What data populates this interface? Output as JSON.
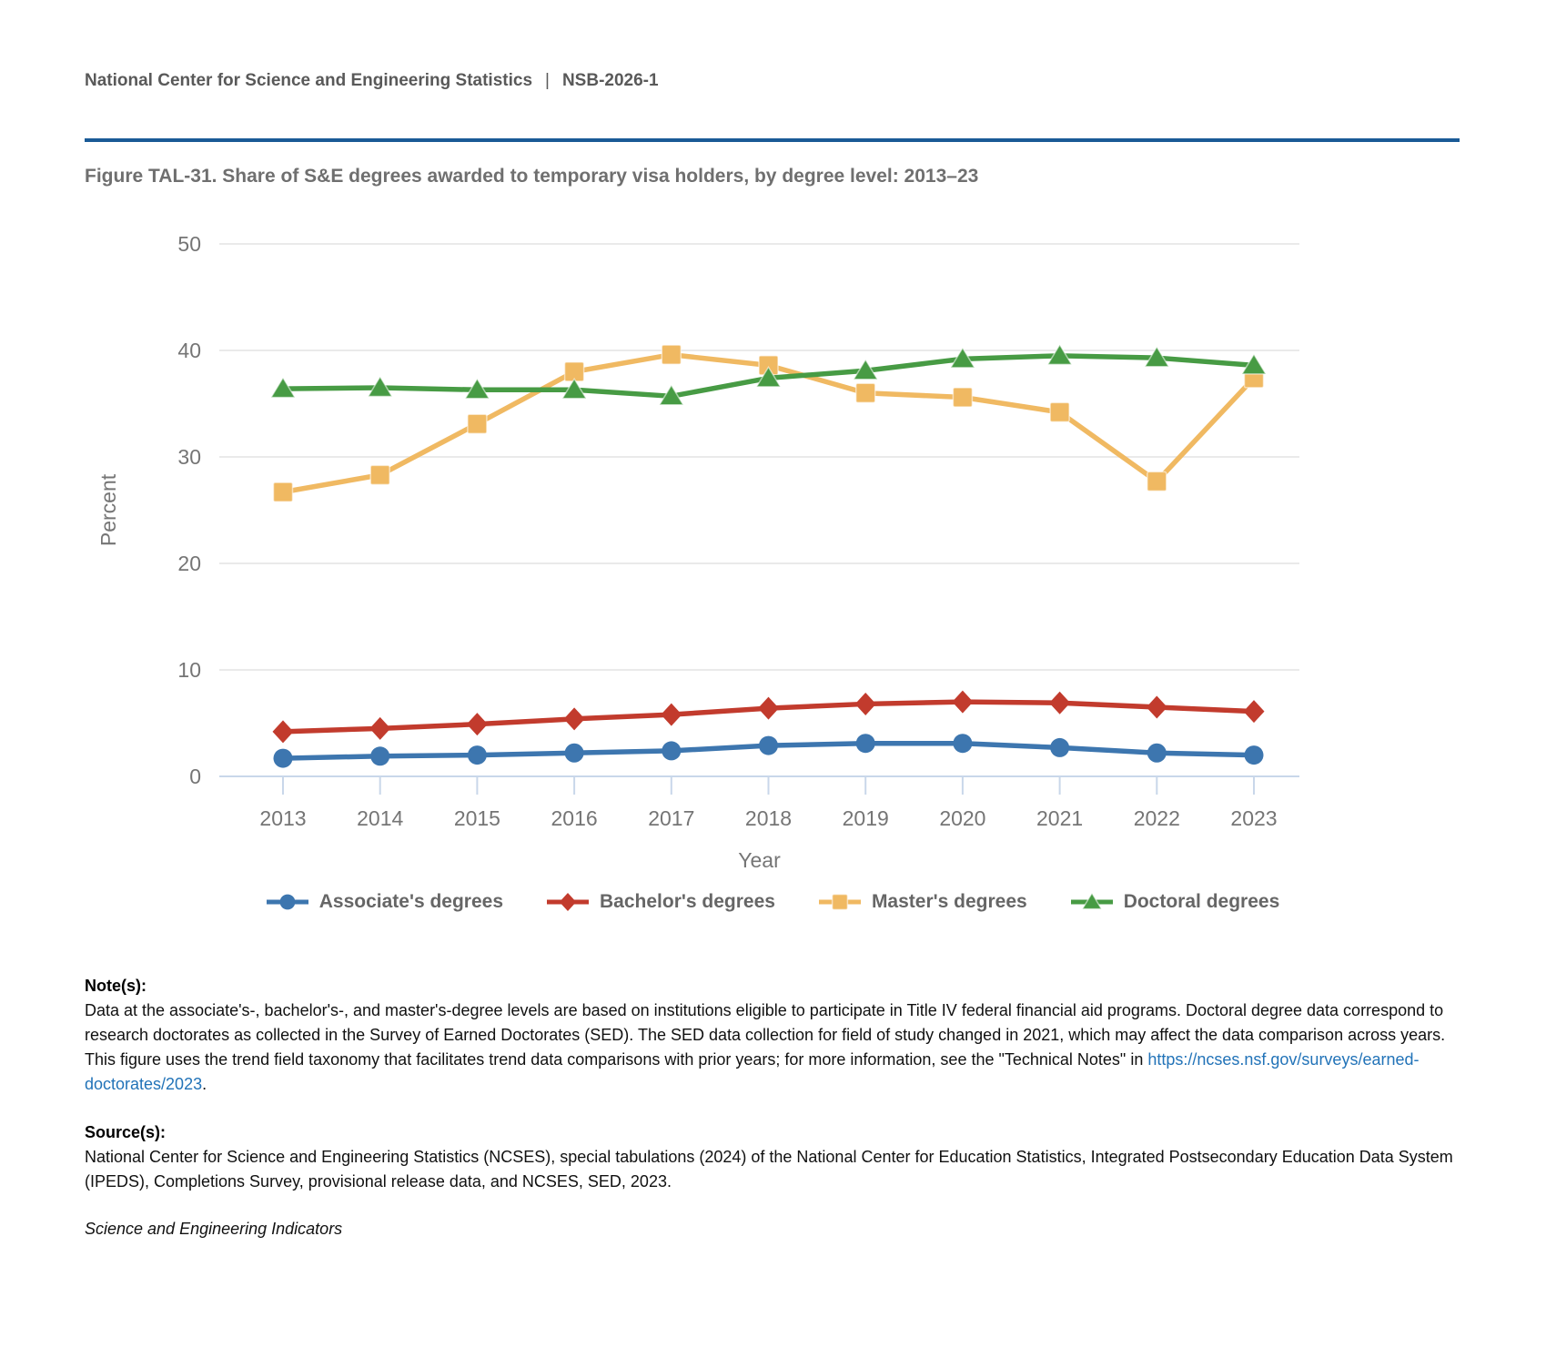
{
  "header": {
    "org": "National Center for Science and Engineering Statistics",
    "separator": "|",
    "report_id": "NSB-2026-1"
  },
  "figure": {
    "title": "Figure TAL-31. Share of S&E degrees awarded to temporary visa holders, by degree level: 2013–23"
  },
  "chart_data": {
    "type": "line",
    "title": "Share of S&E degrees awarded to temporary visa holders, by degree level: 2013–23",
    "xlabel": "Year",
    "ylabel": "Percent",
    "ylim": [
      0,
      50
    ],
    "yticks": [
      0,
      10,
      20,
      30,
      40,
      50
    ],
    "grid": true,
    "legend_position": "bottom",
    "categories": [
      "2013",
      "2014",
      "2015",
      "2016",
      "2017",
      "2018",
      "2019",
      "2020",
      "2021",
      "2022",
      "2023"
    ],
    "series": [
      {
        "name": "Associate's degrees",
        "color": "#3D76AF",
        "marker": "circle",
        "values": [
          1.7,
          1.9,
          2.0,
          2.2,
          2.4,
          2.9,
          3.1,
          3.1,
          2.7,
          2.2,
          2.0
        ]
      },
      {
        "name": "Bachelor's degrees",
        "color": "#C23B2D",
        "marker": "diamond",
        "values": [
          4.2,
          4.5,
          4.9,
          5.4,
          5.8,
          6.4,
          6.8,
          7.0,
          6.9,
          6.5,
          6.1
        ]
      },
      {
        "name": "Master's degrees",
        "color": "#F0B962",
        "marker": "square",
        "values": [
          26.7,
          28.3,
          33.1,
          38.0,
          39.6,
          38.6,
          36.0,
          35.6,
          34.2,
          27.7,
          37.4
        ]
      },
      {
        "name": "Doctoral degrees",
        "color": "#479B44",
        "marker": "triangle",
        "values": [
          36.4,
          36.5,
          36.3,
          36.3,
          35.7,
          37.4,
          38.1,
          39.2,
          39.5,
          39.3,
          38.6
        ]
      }
    ]
  },
  "notes": {
    "label": "Note(s):",
    "text_before_link": "Data at the associate's-, bachelor's-, and master's-degree levels are based on institutions eligible to participate in Title IV federal financial aid programs. Doctoral degree data correspond to research doctorates as collected in the Survey of Earned Doctorates (SED). The SED data collection for field of study changed in 2021, which may affect the data comparison across years. This figure uses the trend field taxonomy that facilitates trend data comparisons with prior years; for more information, see the \"Technical Notes\" in ",
    "link": "https://ncses.nsf.gov/surveys/earned-doctorates/2023",
    "text_after_link": "."
  },
  "sources": {
    "label": "Source(s):",
    "text": "National Center for Science and Engineering Statistics (NCSES), special tabulations (2024) of the National Center for Education Statistics, Integrated Postsecondary Education Data System (IPEDS), Completions Survey, provisional release data, and NCSES, SED, 2023."
  },
  "footer": {
    "text": "Science and Engineering Indicators"
  },
  "colors": {
    "accent_rule": "#1A5A96",
    "link": "#2273B8",
    "header_text": "#595959",
    "figure_title_text": "#6F6F6F",
    "axis_text": "#757575",
    "gridline": "#E4E4E4",
    "axis_line": "#C9D7EA"
  }
}
